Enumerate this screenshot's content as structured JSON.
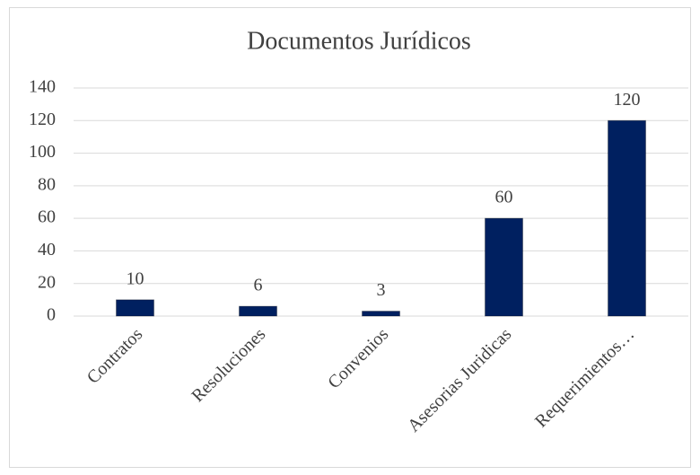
{
  "chart_data": {
    "type": "bar",
    "title": "Documentos Jurídicos",
    "categories": [
      "Contratos",
      "Resoluciones",
      "Convenios",
      "Asesorias Juridicas",
      "Requerimientos…"
    ],
    "values": [
      10,
      6,
      3,
      60,
      120
    ],
    "color": "#002060",
    "ylim": [
      0,
      140
    ],
    "yticks": [
      0,
      20,
      40,
      60,
      80,
      100,
      120,
      140
    ],
    "grid": true
  }
}
